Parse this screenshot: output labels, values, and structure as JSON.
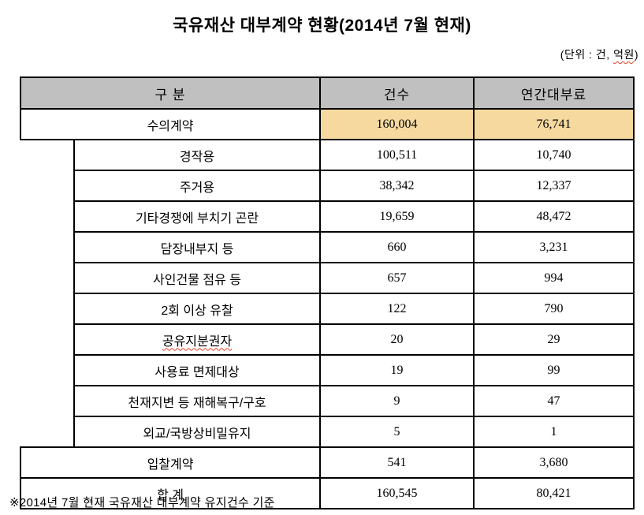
{
  "title": "국유재산 대부계약 현황(2014년 7월 현재)",
  "unit_note": {
    "prefix": "(단위 : 건, ",
    "underlined": "억원",
    "suffix": ")"
  },
  "table": {
    "headers": {
      "category": "구 분",
      "count": "건수",
      "annual_fee": "연간대부료"
    },
    "negotiated": {
      "label": "수의계약",
      "count": "160,004",
      "fee": "76,741"
    },
    "sub_rows": [
      {
        "label": "경작용",
        "count": "100,511",
        "fee": "10,740"
      },
      {
        "label": "주거용",
        "count": "38,342",
        "fee": "12,337"
      },
      {
        "label": "기타경쟁에 부치기 곤란",
        "count": "19,659",
        "fee": "48,472"
      },
      {
        "label": "담장내부지 등",
        "count": "660",
        "fee": "3,231"
      },
      {
        "label": "사인건물 점유 등",
        "count": "657",
        "fee": "994"
      },
      {
        "label": "2회 이상 유찰",
        "count": "122",
        "fee": "790"
      },
      {
        "label": "공유지분권자",
        "count": "20",
        "fee": "29"
      },
      {
        "label": "사용료 면제대상",
        "count": "19",
        "fee": "99"
      },
      {
        "label": "천재지변 등 재해복구/구호",
        "count": "9",
        "fee": "47"
      },
      {
        "label": "외교/국방상비밀유지",
        "count": "5",
        "fee": "1"
      }
    ],
    "bid": {
      "label": "입찰계약",
      "count": "541",
      "fee": "3,680"
    },
    "total": {
      "label": "합 계",
      "count": "160,545",
      "fee": "80,421"
    }
  },
  "footnote": "※2014년 7월 현재 국유재산 대부계약 유지건수 기준",
  "colors": {
    "header_bg": "#c0c0c0",
    "highlight": "#f5d99f",
    "squiggle": "#ee4023",
    "border": "#000000"
  }
}
